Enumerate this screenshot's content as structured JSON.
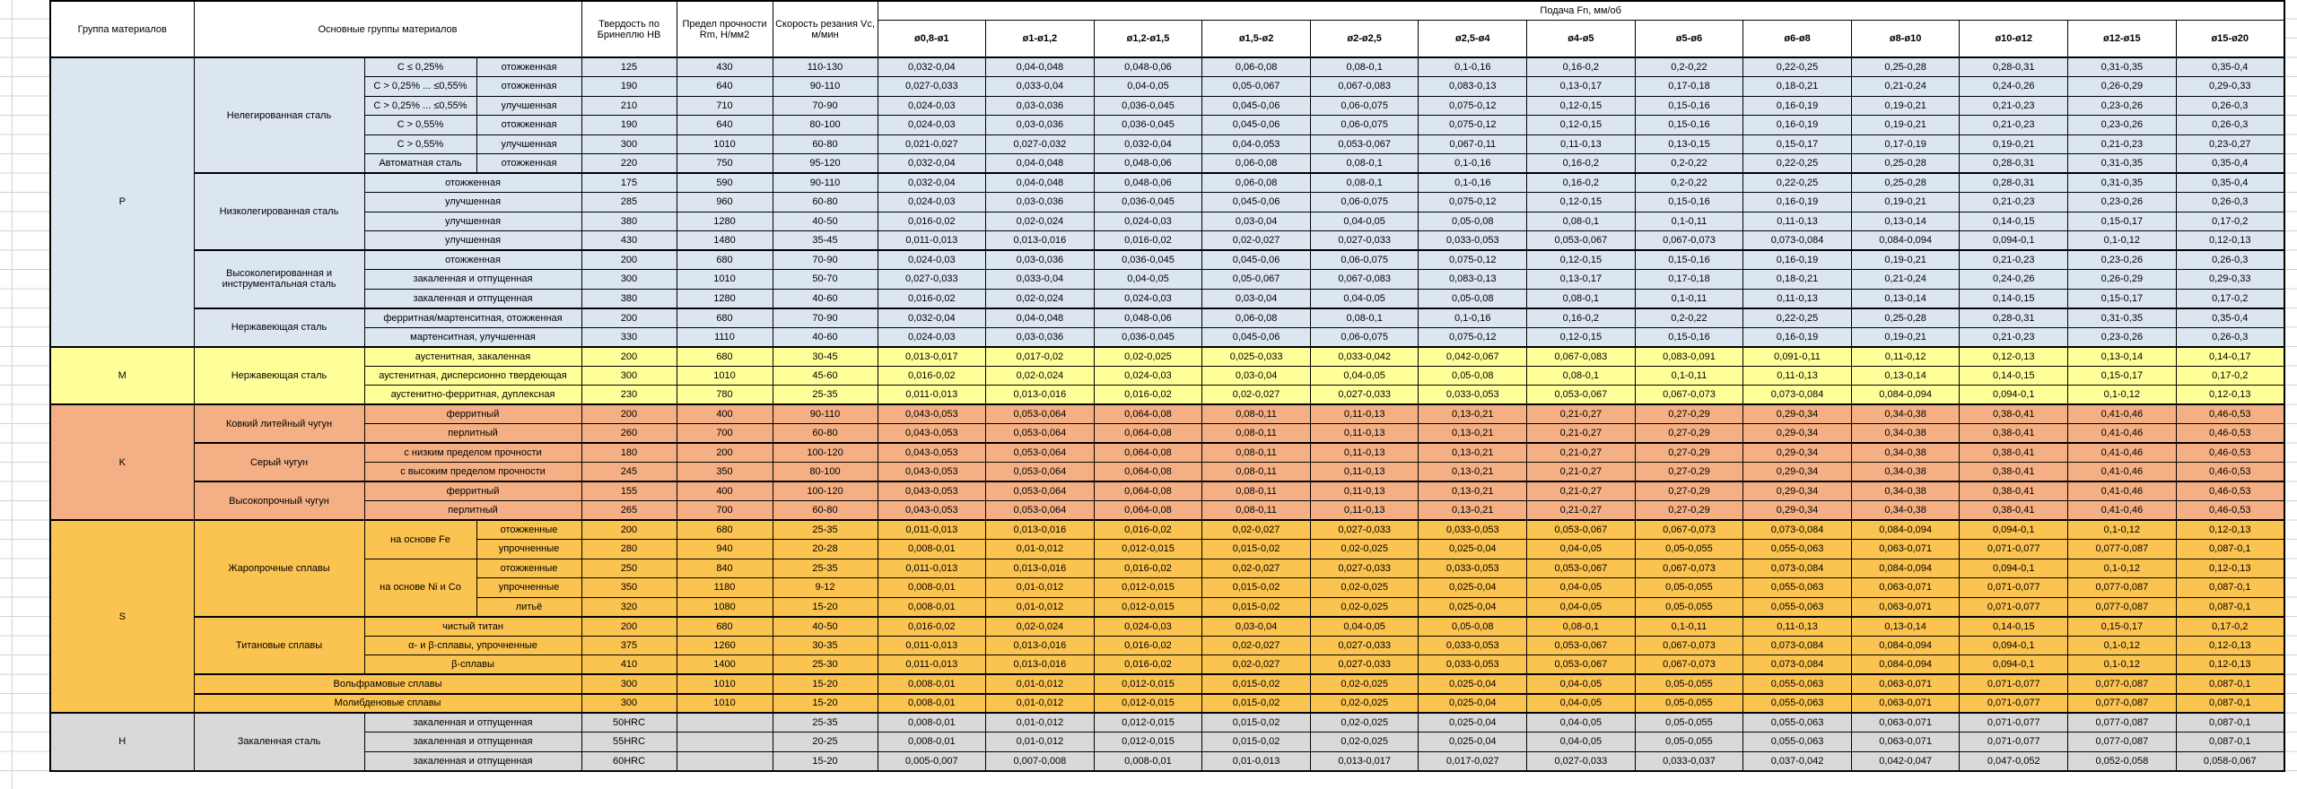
{
  "header": {
    "col_group": "Группа материалов",
    "col_materials": "Основные группы материалов",
    "col_hardness": "Твердость по Бринеллю HB",
    "col_strength": "Предел прочности Rm, Н/мм2",
    "col_speed": "Скорость резания Vc, м/мин",
    "col_feed": "Подача Fn, мм/об",
    "feed_cols": [
      "ø0,8-ø1",
      "ø1-ø1,2",
      "ø1,2-ø1,5",
      "ø1,5-ø2",
      "ø2-ø2,5",
      "ø2,5-ø4",
      "ø4-ø5",
      "ø5-ø6",
      "ø6-ø8",
      "ø8-ø10",
      "ø10-ø12",
      "ø12-ø15",
      "ø15-ø20"
    ]
  },
  "colors": {
    "P": "#dce6f1",
    "M": "#ffff99",
    "K": "#f4b084",
    "S": "#fbc34f",
    "H": "#d9d9d9",
    "border": "#000000",
    "gridline": "#cdd3dd"
  },
  "feed_patterns": {
    "A": [
      "0,032-0,04",
      "0,04-0,048",
      "0,048-0,06",
      "0,06-0,08",
      "0,08-0,1",
      "0,1-0,16",
      "0,16-0,2",
      "0,2-0,22",
      "0,22-0,25",
      "0,25-0,28",
      "0,28-0,31",
      "0,31-0,35",
      "0,35-0,4"
    ],
    "B": [
      "0,027-0,033",
      "0,033-0,04",
      "0,04-0,05",
      "0,05-0,067",
      "0,067-0,083",
      "0,083-0,13",
      "0,13-0,17",
      "0,17-0,18",
      "0,18-0,21",
      "0,21-0,24",
      "0,24-0,26",
      "0,26-0,29",
      "0,29-0,33"
    ],
    "C": [
      "0,024-0,03",
      "0,03-0,036",
      "0,036-0,045",
      "0,045-0,06",
      "0,06-0,075",
      "0,075-0,12",
      "0,12-0,15",
      "0,15-0,16",
      "0,16-0,19",
      "0,19-0,21",
      "0,21-0,23",
      "0,23-0,26",
      "0,26-0,3"
    ],
    "D": [
      "0,021-0,027",
      "0,027-0,032",
      "0,032-0,04",
      "0,04-0,053",
      "0,053-0,067",
      "0,067-0,11",
      "0,11-0,13",
      "0,13-0,15",
      "0,15-0,17",
      "0,17-0,19",
      "0,19-0,21",
      "0,21-0,23",
      "0,23-0,27"
    ],
    "E": [
      "0,016-0,02",
      "0,02-0,024",
      "0,024-0,03",
      "0,03-0,04",
      "0,04-0,05",
      "0,05-0,08",
      "0,08-0,1",
      "0,1-0,11",
      "0,11-0,13",
      "0,13-0,14",
      "0,14-0,15",
      "0,15-0,17",
      "0,17-0,2"
    ],
    "F": [
      "0,011-0,013",
      "0,013-0,016",
      "0,016-0,02",
      "0,02-0,027",
      "0,027-0,033",
      "0,033-0,053",
      "0,053-0,067",
      "0,067-0,073",
      "0,073-0,084",
      "0,084-0,094",
      "0,094-0,1",
      "0,1-0,12",
      "0,12-0,13"
    ],
    "G": [
      "0,013-0,017",
      "0,017-0,02",
      "0,02-0,025",
      "0,025-0,033",
      "0,033-0,042",
      "0,042-0,067",
      "0,067-0,083",
      "0,083-0,091",
      "0,091-0,11",
      "0,11-0,12",
      "0,12-0,13",
      "0,13-0,14",
      "0,14-0,17"
    ],
    "K": [
      "0,043-0,053",
      "0,053-0,064",
      "0,064-0,08",
      "0,08-0,11",
      "0,11-0,13",
      "0,13-0,21",
      "0,21-0,27",
      "0,27-0,29",
      "0,29-0,34",
      "0,34-0,38",
      "0,38-0,41",
      "0,41-0,46",
      "0,46-0,53"
    ],
    "H8": [
      "0,008-0,01",
      "0,01-0,012",
      "0,012-0,015",
      "0,015-0,02",
      "0,02-0,025",
      "0,025-0,04",
      "0,04-0,05",
      "0,05-0,055",
      "0,055-0,063",
      "0,063-0,071",
      "0,071-0,077",
      "0,077-0,087",
      "0,087-0,1"
    ],
    "Z": [
      "0,005-0,007",
      "0,007-0,008",
      "0,008-0,01",
      "0,01-0,013",
      "0,013-0,017",
      "0,017-0,027",
      "0,027-0,033",
      "0,033-0,037",
      "0,037-0,042",
      "0,042-0,047",
      "0,047-0,052",
      "0,052-0,058",
      "0,058-0,067"
    ]
  },
  "rows": [
    {
      "grp": "P",
      "g": "P",
      "gspan": 15,
      "m": "Нелегированная сталь",
      "mspan": 6,
      "c1": "C ≤ 0,25%",
      "c2": "отожженная",
      "hb": "125",
      "rm": "430",
      "vc": "110-130",
      "fp": "A"
    },
    {
      "grp": "P",
      "c1": "C > 0,25% ... ≤0,55%",
      "c2": "отожженная",
      "hb": "190",
      "rm": "640",
      "vc": "90-110",
      "fp": "B"
    },
    {
      "grp": "P",
      "c1": "C > 0,25% ... ≤0,55%",
      "c2": "улучшенная",
      "hb": "210",
      "rm": "710",
      "vc": "70-90",
      "fp": "C"
    },
    {
      "grp": "P",
      "c1": "C > 0,55%",
      "c2": "отожженная",
      "hb": "190",
      "rm": "640",
      "vc": "80-100",
      "fp": "C"
    },
    {
      "grp": "P",
      "c1": "C > 0,55%",
      "c2": "улучшенная",
      "hb": "300",
      "rm": "1010",
      "vc": "60-80",
      "fp": "D"
    },
    {
      "grp": "P",
      "c1": "Автоматная сталь",
      "c2": "отожженная",
      "hb": "220",
      "rm": "750",
      "vc": "95-120",
      "fp": "A"
    },
    {
      "grp": "P",
      "sep": true,
      "m": "Низколегированная сталь",
      "mspan": 4,
      "c": "отожженная",
      "hb": "175",
      "rm": "590",
      "vc": "90-110",
      "fp": "A"
    },
    {
      "grp": "P",
      "c": "улучшенная",
      "hb": "285",
      "rm": "960",
      "vc": "60-80",
      "fp": "C"
    },
    {
      "grp": "P",
      "c": "улучшенная",
      "hb": "380",
      "rm": "1280",
      "vc": "40-50",
      "fp": "E"
    },
    {
      "grp": "P",
      "c": "улучшенная",
      "hb": "430",
      "rm": "1480",
      "vc": "35-45",
      "fp": "F"
    },
    {
      "grp": "P",
      "sep": true,
      "m": "Высоколегированная и инструментальная сталь",
      "mspan": 3,
      "c": "отожженная",
      "hb": "200",
      "rm": "680",
      "vc": "70-90",
      "fp": "C"
    },
    {
      "grp": "P",
      "c": "закаленная и отпущенная",
      "hb": "300",
      "rm": "1010",
      "vc": "50-70",
      "fp": "B"
    },
    {
      "grp": "P",
      "c": "закаленная и отпущенная",
      "hb": "380",
      "rm": "1280",
      "vc": "40-60",
      "fp": "E"
    },
    {
      "grp": "P",
      "sep": true,
      "m": "Нержавеющая сталь",
      "mspan": 2,
      "c": "ферритная/мартенситная, отожженная",
      "hb": "200",
      "rm": "680",
      "vc": "70-90",
      "fp": "A"
    },
    {
      "grp": "P",
      "c": "мартенситная, улучшенная",
      "hb": "330",
      "rm": "1110",
      "vc": "40-60",
      "fp": "C"
    },
    {
      "grp": "M",
      "sep": true,
      "g": "M",
      "gspan": 3,
      "m": "Нержавеющая сталь",
      "mspan": 3,
      "c": "аустенитная, закаленная",
      "hb": "200",
      "rm": "680",
      "vc": "30-45",
      "fp": "G"
    },
    {
      "grp": "M",
      "c": "аустенитная, дисперсионно твердеющая",
      "hb": "300",
      "rm": "1010",
      "vc": "45-60",
      "fp": "E"
    },
    {
      "grp": "M",
      "c": "аустенитно-ферритная, дуплексная",
      "hb": "230",
      "rm": "780",
      "vc": "25-35",
      "fp": "F"
    },
    {
      "grp": "K",
      "sep": true,
      "g": "K",
      "gspan": 6,
      "m": "Ковкий литейный чугун",
      "mspan": 2,
      "c": "ферритный",
      "hb": "200",
      "rm": "400",
      "vc": "90-110",
      "fp": "K"
    },
    {
      "grp": "K",
      "c": "перлитный",
      "hb": "260",
      "rm": "700",
      "vc": "60-80",
      "fp": "K"
    },
    {
      "grp": "K",
      "sep": true,
      "m": "Серый чугун",
      "mspan": 2,
      "c": "с низким пределом прочности",
      "hb": "180",
      "rm": "200",
      "vc": "100-120",
      "fp": "K"
    },
    {
      "grp": "K",
      "c": "с высоким пределом прочности",
      "hb": "245",
      "rm": "350",
      "vc": "80-100",
      "fp": "K"
    },
    {
      "grp": "K",
      "sep": true,
      "m": "Высокопрочный чугун",
      "mspan": 2,
      "c": "ферритный",
      "hb": "155",
      "rm": "400",
      "vc": "100-120",
      "fp": "K"
    },
    {
      "grp": "K",
      "c": "перлитный",
      "hb": "265",
      "rm": "700",
      "vc": "60-80",
      "fp": "K"
    },
    {
      "grp": "S",
      "sep": true,
      "g": "S",
      "gspan": 10,
      "m": "Жаропрочные сплавы",
      "mspan": 5,
      "c1": "на основе Fe",
      "c1span": 2,
      "c2": "отожженные",
      "hb": "200",
      "rm": "680",
      "vc": "25-35",
      "fp": "F"
    },
    {
      "grp": "S",
      "c2": "упрочненные",
      "hb": "280",
      "rm": "940",
      "vc": "20-28",
      "fp": "H8"
    },
    {
      "grp": "S",
      "c1": "на основе Ni и Co",
      "c1span": 3,
      "c2": "отожженные",
      "hb": "250",
      "rm": "840",
      "vc": "25-35",
      "fp": "F"
    },
    {
      "grp": "S",
      "c2": "упрочненные",
      "hb": "350",
      "rm": "1180",
      "vc": "9-12",
      "fp": "H8"
    },
    {
      "grp": "S",
      "c2": "литьё",
      "hb": "320",
      "rm": "1080",
      "vc": "15-20",
      "fp": "H8"
    },
    {
      "grp": "S",
      "sep": true,
      "m": "Титановые сплавы",
      "mspan": 3,
      "c": "чистый титан",
      "hb": "200",
      "rm": "680",
      "vc": "40-50",
      "fp": "E"
    },
    {
      "grp": "S",
      "c": "α- и β-сплавы, упрочненные",
      "hb": "375",
      "rm": "1260",
      "vc": "30-35",
      "fp": "F"
    },
    {
      "grp": "S",
      "c": "β-сплавы",
      "hb": "410",
      "rm": "1400",
      "vc": "25-30",
      "fp": "F"
    },
    {
      "grp": "S",
      "sep": true,
      "mwide": "Вольфрамовые сплавы",
      "hb": "300",
      "rm": "1010",
      "vc": "15-20",
      "fp": "H8"
    },
    {
      "grp": "S",
      "sep": true,
      "mwide": "Молибденовые сплавы",
      "hb": "300",
      "rm": "1010",
      "vc": "15-20",
      "fp": "H8"
    },
    {
      "grp": "H",
      "sep": true,
      "g": "H",
      "gspan": 3,
      "m": "Закаленная сталь",
      "mspan": 3,
      "c": "закаленная и отпущенная",
      "hb": "50HRC",
      "rm": "",
      "vc": "25-35",
      "fp": "H8"
    },
    {
      "grp": "H",
      "c": "закаленная и отпущенная",
      "hb": "55HRC",
      "rm": "",
      "vc": "20-25",
      "fp": "H8"
    },
    {
      "grp": "H",
      "c": "закаленная и отпущенная",
      "hb": "60HRC",
      "rm": "",
      "vc": "15-20",
      "fp": "Z"
    }
  ]
}
